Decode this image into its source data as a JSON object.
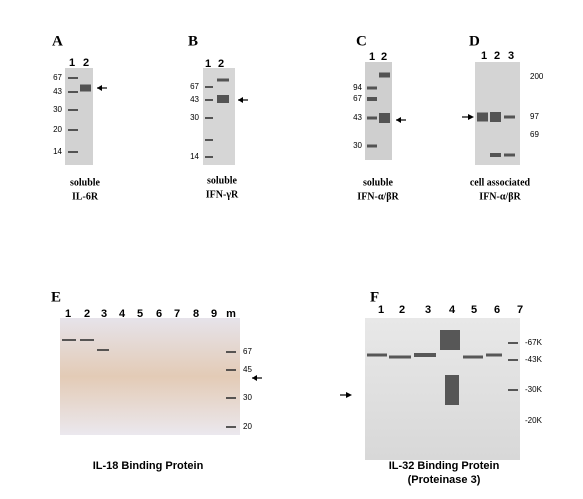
{
  "panels": [
    {
      "label": "A",
      "lanes": [
        "1",
        "2"
      ],
      "markers": [
        "67",
        "43",
        "30",
        "20",
        "14"
      ],
      "caption": [
        "soluble",
        "IL-6R"
      ]
    },
    {
      "label": "B",
      "lanes": [
        "1",
        "2"
      ],
      "markers": [
        "67",
        "43",
        "30",
        "14"
      ],
      "caption": [
        "soluble",
        "IFN-γR"
      ]
    },
    {
      "label": "C",
      "lanes": [
        "1",
        "2"
      ],
      "markers": [
        "94",
        "67",
        "43",
        "30"
      ],
      "caption": [
        "soluble",
        "IFN-α/βR"
      ]
    },
    {
      "label": "D",
      "lanes": [
        "1",
        "2",
        "3"
      ],
      "markers": [
        "200",
        "97",
        "69"
      ],
      "caption": [
        "cell associated",
        "IFN-α/βR"
      ]
    },
    {
      "label": "E",
      "lanes": [
        "1",
        "2",
        "3",
        "4",
        "5",
        "6",
        "7",
        "8",
        "9",
        "m"
      ],
      "markers": [
        "67",
        "45",
        "30",
        "20"
      ],
      "caption": [
        "IL-18 Binding Protein"
      ]
    },
    {
      "label": "F",
      "lanes": [
        "1",
        "2",
        "3",
        "4",
        "5",
        "6",
        "7"
      ],
      "markers": [
        "-67K",
        "-43K",
        "-30K",
        "-20K"
      ],
      "caption": [
        "IL-32 Binding Protein",
        "(Proteinase 3)"
      ]
    }
  ]
}
